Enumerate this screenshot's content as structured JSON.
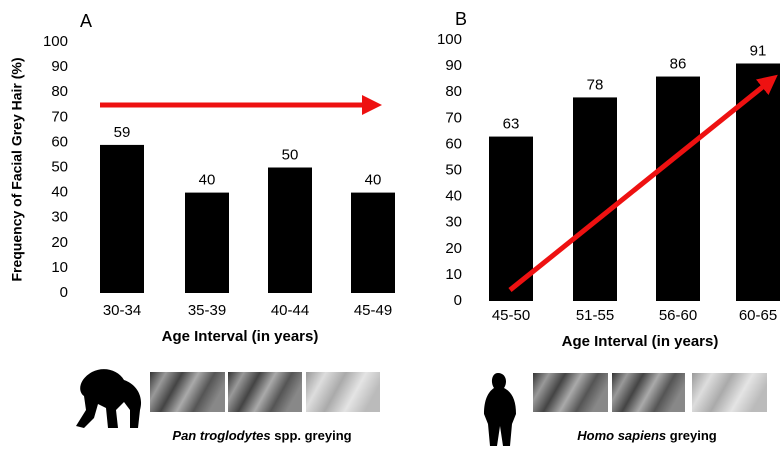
{
  "chart_data": [
    {
      "type": "bar",
      "title": "A",
      "ylabel": "Frequency of Facial Grey Hair (%)",
      "xlabel": "Age Interval (in years)",
      "categories": [
        "30-34",
        "35-39",
        "40-44",
        "45-49"
      ],
      "values": [
        59,
        40,
        50,
        40
      ],
      "color": "#000000",
      "ylim": [
        0,
        100
      ],
      "yticks": [
        0,
        10,
        20,
        30,
        40,
        50,
        60,
        70,
        80,
        90,
        100
      ],
      "caption_species": "Pan troglodytes",
      "caption_rest": "spp. greying"
    },
    {
      "type": "bar",
      "title": "B",
      "xlabel": "Age Interval (in years)",
      "categories": [
        "45-50",
        "51-55",
        "56-60",
        "60-65"
      ],
      "values": [
        63,
        78,
        86,
        91
      ],
      "color": "#000000",
      "ylim": [
        0,
        100
      ],
      "yticks": [
        0,
        10,
        20,
        30,
        40,
        50,
        60,
        70,
        80,
        90,
        100
      ],
      "caption_species": "Homo sapiens",
      "caption_rest": "greying"
    }
  ]
}
